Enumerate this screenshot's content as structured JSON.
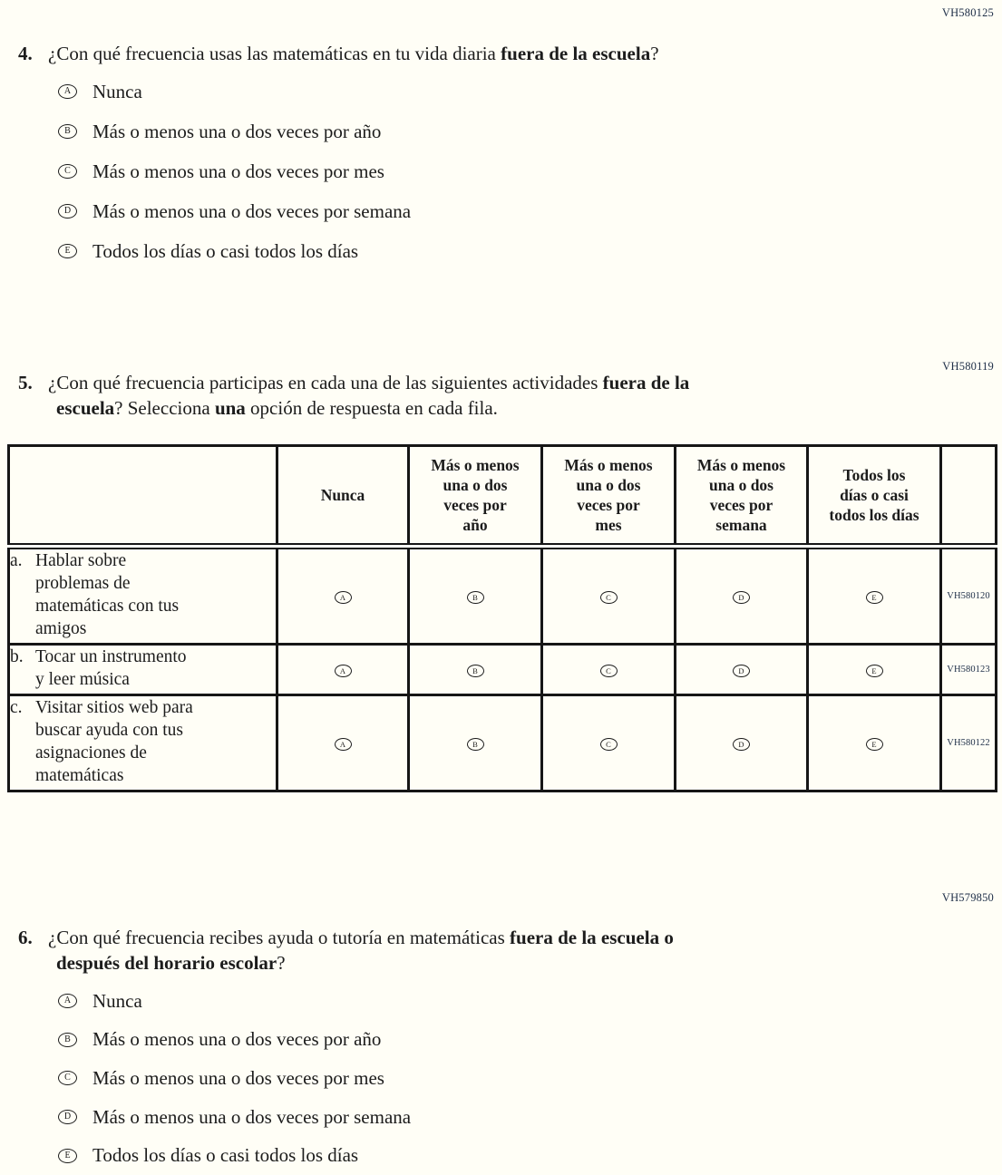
{
  "page": {
    "background_color": "#fffef6",
    "text_color": "#1c1c1c",
    "code_color": "#203049",
    "border_color": "#161616"
  },
  "questions": {
    "q4": {
      "code": "VH580125",
      "number": "4.",
      "prompt": [
        {
          "t": "¿Con qué frecuencia usas las matemáticas en tu vida diaria "
        },
        {
          "t": "fuera de la escuela",
          "b": true
        },
        {
          "t": "?"
        }
      ],
      "options": [
        {
          "letter": "A",
          "label": "Nunca"
        },
        {
          "letter": "B",
          "label": "Más o menos una o dos veces por año"
        },
        {
          "letter": "C",
          "label": "Más o menos una o dos veces por mes"
        },
        {
          "letter": "D",
          "label": "Más o menos una o dos veces por semana"
        },
        {
          "letter": "E",
          "label": "Todos los días o casi todos los días"
        }
      ]
    },
    "q5": {
      "code": "VH580119",
      "number": "5.",
      "prompt": [
        {
          "t": "¿Con qué frecuencia participas en cada una de las siguientes actividades "
        },
        {
          "t": "fuera de la",
          "b": true,
          "br": true
        },
        {
          "t": "escuela",
          "b": true
        },
        {
          "t": "? Selecciona "
        },
        {
          "t": "una",
          "b": true
        },
        {
          "t": " opción de respuesta en cada fila."
        }
      ],
      "table": {
        "column_headers": [
          "",
          "Nunca",
          "Más o menos una o dos veces por año",
          "Más o menos una o dos veces por mes",
          "Más o menos una o dos veces por semana",
          "Todos los días o casi todos los días",
          ""
        ],
        "option_letters": [
          "A",
          "B",
          "C",
          "D",
          "E"
        ],
        "rows": [
          {
            "letter": "a.",
            "label": "Hablar sobre problemas de matemáticas con tus amigos",
            "code": "VH580120"
          },
          {
            "letter": "b.",
            "label": "Tocar un instrumento y leer música",
            "code": "VH580123"
          },
          {
            "letter": "c.",
            "label": "Visitar sitios web para buscar ayuda con tus asignaciones de matemáticas",
            "code": "VH580122"
          }
        ]
      }
    },
    "q6": {
      "code": "VH579850",
      "number": "6.",
      "prompt": [
        {
          "t": "¿Con qué frecuencia recibes ayuda o tutoría en matemáticas "
        },
        {
          "t": "fuera de la escuela o",
          "b": true,
          "br": true
        },
        {
          "t": "después del horario escolar",
          "b": true
        },
        {
          "t": "?"
        }
      ],
      "options": [
        {
          "letter": "A",
          "label": "Nunca"
        },
        {
          "letter": "B",
          "label": "Más o menos una o dos veces por año"
        },
        {
          "letter": "C",
          "label": "Más o menos una o dos veces por mes"
        },
        {
          "letter": "D",
          "label": "Más o menos una o dos veces por semana"
        },
        {
          "letter": "E",
          "label": "Todos los días o casi todos los días"
        }
      ]
    }
  }
}
